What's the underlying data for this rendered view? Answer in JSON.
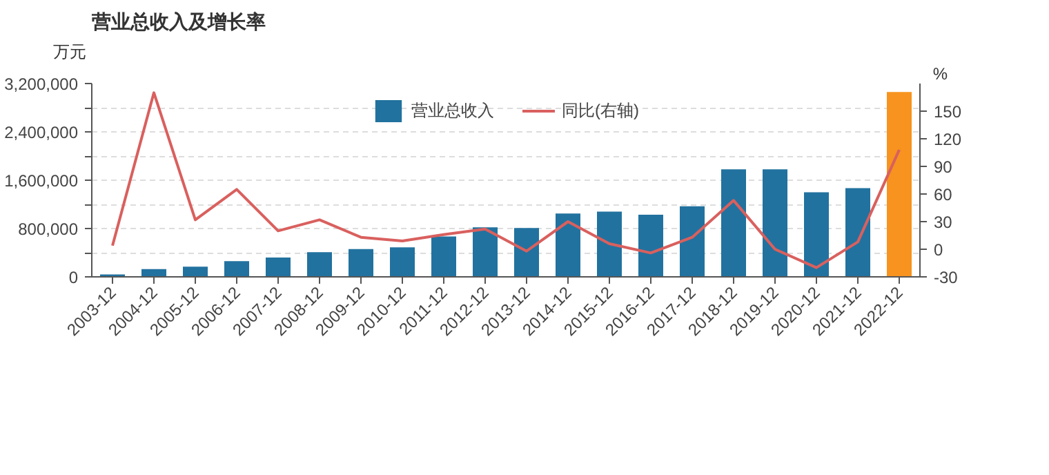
{
  "chart_data": {
    "type": "bar",
    "title": "营业总收入及增长率",
    "ylabel": "万元",
    "y2label": "%",
    "categories": [
      "2003-12",
      "2004-12",
      "2005-12",
      "2006-12",
      "2007-12",
      "2008-12",
      "2009-12",
      "2010-12",
      "2011-12",
      "2012-12",
      "2013-12",
      "2014-12",
      "2015-12",
      "2016-12",
      "2017-12",
      "2018-12",
      "2019-12",
      "2020-12",
      "2021-12",
      "2022-12"
    ],
    "series": [
      {
        "name": "营业总收入",
        "color": "#22729f",
        "colors": [
          null,
          null,
          null,
          null,
          null,
          null,
          null,
          null,
          null,
          null,
          null,
          null,
          null,
          null,
          null,
          null,
          null,
          null,
          null,
          "#f7931e"
        ],
        "values": [
          40000,
          130000,
          170000,
          260000,
          320000,
          410000,
          460000,
          490000,
          670000,
          820000,
          810000,
          1050000,
          1080000,
          1030000,
          1170000,
          1780000,
          1780000,
          1400000,
          1470000,
          3060000
        ]
      },
      {
        "name": "同比(右轴)",
        "type": "line",
        "axis": "y2",
        "color": "#d9605e",
        "values": [
          4,
          170,
          32,
          65,
          20,
          32,
          13,
          9,
          16,
          22,
          -2,
          30,
          6,
          -4,
          13,
          53,
          0,
          -20,
          8,
          108
        ]
      }
    ],
    "ylim": [
      0,
      3200000
    ],
    "yticks": [
      0,
      {
        "value": 400000,
        "label": null
      },
      {
        "value": 800000,
        "label": "800,000"
      },
      {
        "value": 1200000,
        "label": null
      },
      {
        "value": 1600000,
        "label": "1,600,000"
      },
      {
        "value": 2000000,
        "label": null
      },
      {
        "value": 2400000,
        "label": "2,400,000"
      },
      {
        "value": 2800000,
        "label": null
      },
      {
        "value": 3200000,
        "label": "3,200,000"
      }
    ],
    "y2lim": [
      -30,
      180
    ],
    "y2ticks": [
      -30,
      0,
      30,
      60,
      90,
      120,
      150
    ],
    "grid": "y",
    "legend": "top"
  }
}
